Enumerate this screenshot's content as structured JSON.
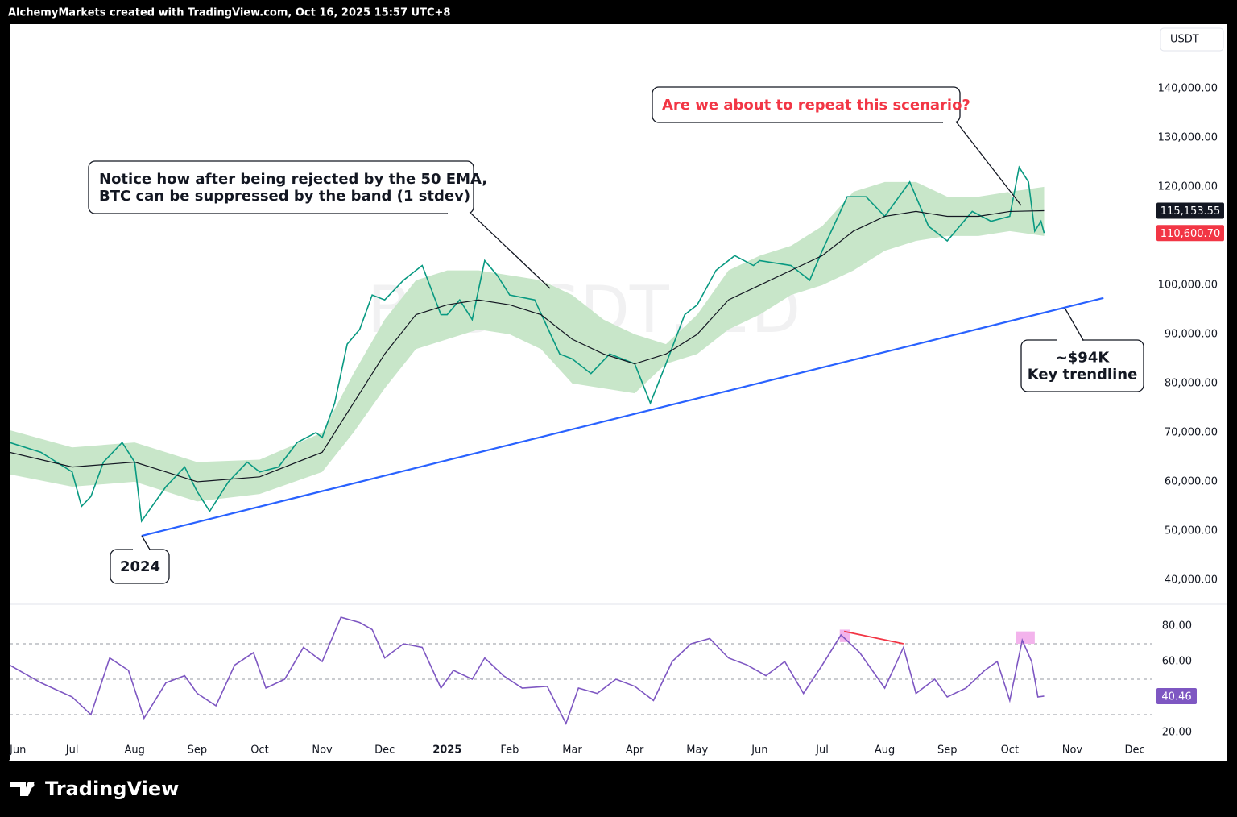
{
  "header": "AlchemyMarkets created with TradingView.com, Oct 16, 2025 15:57 UTC+8",
  "footer": "TradingView",
  "chart_data": [
    {
      "type": "line",
      "currency": "USDT",
      "watermark": "BTCUSDT, 1D",
      "xlim": [
        0,
        18.27
      ],
      "xticks": [
        {
          "value": 0,
          "label": "Jun"
        },
        {
          "value": 1,
          "label": "Jul"
        },
        {
          "value": 2,
          "label": "Aug"
        },
        {
          "value": 3,
          "label": "Sep"
        },
        {
          "value": 4,
          "label": "Oct"
        },
        {
          "value": 5,
          "label": "Nov"
        },
        {
          "value": 6,
          "label": "Dec"
        },
        {
          "value": 7,
          "label": "2025"
        },
        {
          "value": 8,
          "label": "Feb"
        },
        {
          "value": 9,
          "label": "Mar"
        },
        {
          "value": 10,
          "label": "Apr"
        },
        {
          "value": 11,
          "label": "May"
        },
        {
          "value": 12,
          "label": "Jun"
        },
        {
          "value": 13,
          "label": "Jul"
        },
        {
          "value": 14,
          "label": "Aug"
        },
        {
          "value": 15,
          "label": "Sep"
        },
        {
          "value": 16,
          "label": "Oct"
        },
        {
          "value": 17,
          "label": "Nov"
        },
        {
          "value": 18,
          "label": "Dec"
        }
      ],
      "ylim": [
        35400,
        153100
      ],
      "yticks": [
        {
          "value": 40000,
          "label": "40,000.00"
        },
        {
          "value": 50000,
          "label": "50,000.00"
        },
        {
          "value": 60000,
          "label": "60,000.00"
        },
        {
          "value": 70000,
          "label": "70,000.00"
        },
        {
          "value": 80000,
          "label": "80,000.00"
        },
        {
          "value": 90000,
          "label": "90,000.00"
        },
        {
          "value": 100000,
          "label": "100,000.00"
        },
        {
          "value": 110000,
          "label": "110,000.00"
        },
        {
          "value": 120000,
          "label": "120,000.00"
        },
        {
          "value": 130000,
          "label": "130,000.00"
        },
        {
          "value": 140000,
          "label": "140,000.00"
        }
      ],
      "band": {
        "color": "#c8e6c9",
        "x": [
          0,
          1,
          2,
          3,
          4,
          5,
          5.5,
          6,
          6.5,
          7,
          7.5,
          8,
          8.5,
          9,
          9.5,
          10,
          10.5,
          11,
          11.5,
          12,
          12.5,
          13,
          13.5,
          14,
          14.5,
          15,
          15.5,
          16,
          16.55
        ],
        "upper": [
          70500,
          67000,
          68000,
          64000,
          64500,
          70000,
          82000,
          93000,
          101000,
          103000,
          103000,
          102000,
          101000,
          98000,
          93000,
          90000,
          88000,
          94000,
          103000,
          106000,
          108000,
          112000,
          119000,
          121000,
          121000,
          118000,
          118000,
          119000,
          120000
        ],
        "lower": [
          61500,
          59000,
          60000,
          56000,
          57500,
          62000,
          70000,
          79000,
          87000,
          89000,
          91000,
          90000,
          87000,
          80000,
          79000,
          78000,
          84000,
          86000,
          91000,
          94000,
          98000,
          100000,
          103000,
          107000,
          109000,
          110000,
          110000,
          111000,
          110000
        ]
      },
      "series": [
        {
          "color": "#089981",
          "x": [
            0,
            0.5,
            1,
            1.15,
            1.3,
            1.5,
            1.8,
            2,
            2.11,
            2.5,
            2.8,
            3,
            3.2,
            3.5,
            3.8,
            4,
            4.3,
            4.6,
            4.9,
            5,
            5.2,
            5.4,
            5.6,
            5.8,
            6,
            6.3,
            6.6,
            6.9,
            7,
            7.2,
            7.4,
            7.6,
            7.8,
            8,
            8.4,
            8.8,
            9,
            9.3,
            9.6,
            10,
            10.25,
            10.5,
            10.8,
            11,
            11.3,
            11.6,
            11.9,
            12,
            12.5,
            12.8,
            13,
            13.4,
            13.7,
            14,
            14.4,
            14.7,
            15,
            15.4,
            15.7,
            16,
            16.15,
            16.3,
            16.4,
            16.5,
            16.55
          ],
          "values": [
            68000,
            66000,
            62000,
            55000,
            57000,
            64000,
            68000,
            64000,
            52000,
            59000,
            63000,
            58000,
            54000,
            60000,
            64000,
            62000,
            63000,
            68000,
            70000,
            69000,
            76000,
            88000,
            91000,
            98000,
            97000,
            101000,
            104000,
            94000,
            94000,
            97000,
            93000,
            105000,
            102000,
            98000,
            97000,
            86000,
            85000,
            82000,
            86000,
            84000,
            76000,
            84000,
            94000,
            96000,
            103000,
            106000,
            104000,
            105000,
            104000,
            101000,
            107000,
            118000,
            118000,
            114000,
            121000,
            112000,
            109000,
            115000,
            113000,
            114000,
            124000,
            121000,
            111000,
            113000,
            110600.7
          ]
        },
        {
          "color": "#131722",
          "x": [
            0,
            1,
            2,
            3,
            4,
            5,
            5.5,
            6,
            6.5,
            7,
            7.5,
            8,
            8.5,
            9,
            9.5,
            10,
            10.5,
            11,
            11.5,
            12,
            12.5,
            13,
            13.5,
            14,
            14.5,
            15,
            15.5,
            16,
            16.55
          ],
          "values": [
            66000,
            63000,
            64000,
            60000,
            61000,
            66000,
            76000,
            86000,
            94000,
            96000,
            97000,
            96000,
            94000,
            89000,
            86000,
            84000,
            86000,
            90000,
            97000,
            100000,
            103000,
            106000,
            111000,
            114000,
            115000,
            114000,
            114000,
            115000,
            115153.55
          ]
        }
      ],
      "trendline": {
        "color": "#2962ff",
        "x": [
          2.11,
          17.5
        ],
        "values": [
          49000,
          97400
        ]
      },
      "price_tags": [
        {
          "value": 115153.55,
          "label": "115,153.55",
          "color": "#131722"
        },
        {
          "value": 110600.7,
          "label": "110,600.70",
          "color": "#f23645"
        }
      ],
      "annotations": [
        {
          "lines": [
            "Notice how after being rejected by the 50 EMA,",
            "BTC can be suppressed by the band (1 stdev)"
          ],
          "color": "#131722"
        },
        {
          "lines": [
            "Are we about to repeat this scenario?"
          ],
          "color": "#f23645"
        },
        {
          "lines": [
            "~$94K",
            "Key trendline"
          ],
          "color": "#131722"
        },
        {
          "lines": [
            "2024"
          ],
          "color": "#131722"
        }
      ]
    },
    {
      "type": "line",
      "ylim": [
        3.6,
        91.4
      ],
      "yticks": [
        {
          "value": 20,
          "label": "20.00"
        },
        {
          "value": 60,
          "label": "60.00"
        },
        {
          "value": 80,
          "label": "80.00"
        }
      ],
      "levels": [
        30,
        50,
        70
      ],
      "series": [
        {
          "color": "#7e57c2",
          "x": [
            0,
            0.5,
            1,
            1.3,
            1.6,
            1.9,
            2.15,
            2.5,
            2.8,
            3,
            3.3,
            3.6,
            3.9,
            4.1,
            4.4,
            4.7,
            5,
            5.3,
            5.6,
            5.8,
            6,
            6.3,
            6.6,
            6.9,
            7.1,
            7.4,
            7.6,
            7.9,
            8.2,
            8.6,
            8.9,
            9.1,
            9.4,
            9.7,
            10,
            10.3,
            10.6,
            10.9,
            11.2,
            11.5,
            11.8,
            12.1,
            12.4,
            12.7,
            13,
            13.3,
            13.6,
            13.8,
            14,
            14.3,
            14.5,
            14.8,
            15,
            15.3,
            15.6,
            15.8,
            16,
            16.2,
            16.35,
            16.45,
            16.55
          ],
          "values": [
            58,
            48,
            40,
            30,
            62,
            55,
            28,
            48,
            52,
            42,
            35,
            58,
            65,
            45,
            50,
            68,
            60,
            85,
            82,
            78,
            62,
            70,
            68,
            45,
            55,
            50,
            62,
            52,
            45,
            46,
            25,
            45,
            42,
            50,
            46,
            38,
            60,
            70,
            73,
            62,
            58,
            52,
            60,
            42,
            58,
            75,
            65,
            55,
            45,
            68,
            42,
            50,
            40,
            45,
            55,
            60,
            38,
            72,
            60,
            40,
            40.46
          ]
        }
      ],
      "divergence": {
        "color": "#f23645",
        "x": [
          13.35,
          14.3
        ],
        "values": [
          77,
          70
        ]
      },
      "zones": [
        {
          "color": "#f3b3ec",
          "x": [
            13.28,
            13.45
          ],
          "y": [
            71,
            78
          ]
        },
        {
          "color": "#f3b3ec",
          "x": [
            16.1,
            16.4
          ],
          "y": [
            70,
            77
          ]
        }
      ]
    }
  ]
}
